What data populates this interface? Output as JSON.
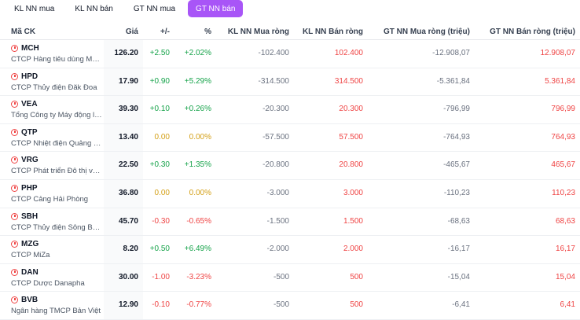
{
  "tabs": [
    {
      "label": "KL NN mua",
      "active": false
    },
    {
      "label": "KL NN bán",
      "active": false
    },
    {
      "label": "GT NN mua",
      "active": false
    },
    {
      "label": "GT NN bán",
      "active": true
    }
  ],
  "colors": {
    "accent": "#a855f7",
    "up": "#16a34a",
    "flat": "#d4a017",
    "down": "#ef4444"
  },
  "table": {
    "headers": {
      "symbol": "Mã CK",
      "price": "Giá",
      "change": "+/-",
      "pct": "%",
      "kl_mua": "KL NN Mua ròng",
      "kl_ban": "KL NN Bán ròng",
      "gt_mua": "GT NN Mua ròng (triệu)",
      "gt_ban": "GT NN Bán ròng (triệu)"
    },
    "rows": [
      {
        "symbol": "MCH",
        "name": "CTCP Hàng tiêu dùng MASAN",
        "price": "126.20",
        "change": "+2.50",
        "pct": "+2.02%",
        "dir": "up",
        "kl_mua": "-102.400",
        "kl_ban": "102.400",
        "gt_mua": "-12.908,07",
        "gt_ban": "12.908,07"
      },
      {
        "symbol": "HPD",
        "name": "CTCP Thủy điện Đăk Đoa",
        "price": "17.90",
        "change": "+0.90",
        "pct": "+5.29%",
        "dir": "up",
        "kl_mua": "-314.500",
        "kl_ban": "314.500",
        "gt_mua": "-5.361,84",
        "gt_ban": "5.361,84"
      },
      {
        "symbol": "VEA",
        "name": "Tổng Công ty Máy động lực",
        "price": "39.30",
        "change": "+0.10",
        "pct": "+0.26%",
        "dir": "up",
        "kl_mua": "-20.300",
        "kl_ban": "20.300",
        "gt_mua": "-796,99",
        "gt_ban": "796,99"
      },
      {
        "symbol": "QTP",
        "name": "CTCP Nhiệt điện Quảng Ninh",
        "price": "13.40",
        "change": "0.00",
        "pct": "0.00%",
        "dir": "flat",
        "kl_mua": "-57.500",
        "kl_ban": "57.500",
        "gt_mua": "-764,93",
        "gt_ban": "764,93"
      },
      {
        "symbol": "VRG",
        "name": "CTCP Phát triển Đô thị và Khu",
        "price": "22.50",
        "change": "+0.30",
        "pct": "+1.35%",
        "dir": "up",
        "kl_mua": "-20.800",
        "kl_ban": "20.800",
        "gt_mua": "-465,67",
        "gt_ban": "465,67"
      },
      {
        "symbol": "PHP",
        "name": "CTCP Cảng Hải Phòng",
        "price": "36.80",
        "change": "0.00",
        "pct": "0.00%",
        "dir": "flat",
        "kl_mua": "-3.000",
        "kl_ban": "3.000",
        "gt_mua": "-110,23",
        "gt_ban": "110,23"
      },
      {
        "symbol": "SBH",
        "name": "CTCP Thủy điện Sông Ba Hạ",
        "price": "45.70",
        "change": "-0.30",
        "pct": "-0.65%",
        "dir": "down",
        "kl_mua": "-1.500",
        "kl_ban": "1.500",
        "gt_mua": "-68,63",
        "gt_ban": "68,63"
      },
      {
        "symbol": "MZG",
        "name": "CTCP MiZa",
        "price": "8.20",
        "change": "+0.50",
        "pct": "+6.49%",
        "dir": "up",
        "kl_mua": "-2.000",
        "kl_ban": "2.000",
        "gt_mua": "-16,17",
        "gt_ban": "16,17"
      },
      {
        "symbol": "DAN",
        "name": "CTCP Dược Danapha",
        "price": "30.00",
        "change": "-1.00",
        "pct": "-3.23%",
        "dir": "down",
        "kl_mua": "-500",
        "kl_ban": "500",
        "gt_mua": "-15,04",
        "gt_ban": "15,04"
      },
      {
        "symbol": "BVB",
        "name": "Ngân hàng TMCP Bản Việt",
        "price": "12.90",
        "change": "-0.10",
        "pct": "-0.77%",
        "dir": "down",
        "kl_mua": "-500",
        "kl_ban": "500",
        "gt_mua": "-6,41",
        "gt_ban": "6,41"
      }
    ]
  }
}
